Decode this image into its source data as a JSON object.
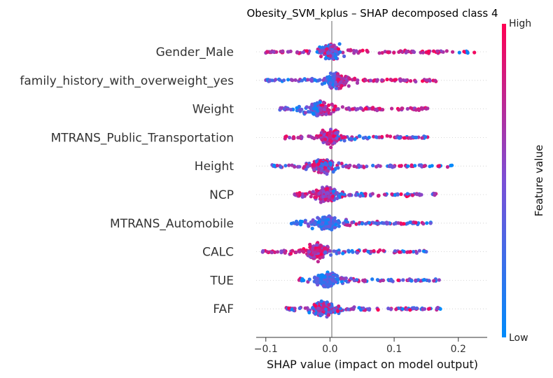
{
  "chart_data": {
    "type": "scatter",
    "subtype": "shap-beeswarm",
    "title": "Obesity_SVM_kplus – SHAP decomposed class 4",
    "xlabel": "SHAP value (impact on model output)",
    "xticks": [
      -0.1,
      0.0,
      0.1,
      0.2
    ],
    "xtick_labels": [
      "−0.1",
      "0.0",
      "0.1",
      "0.2"
    ],
    "xlim": [
      -0.115,
      0.245
    ],
    "colorbar": {
      "label": "Feature value",
      "high_label": "High",
      "low_label": "Low",
      "low_color": "#008bfb",
      "mid_color": "#7b4fd6",
      "high_color": "#ff0052"
    },
    "series": [
      {
        "name": "Gender_Male",
        "min": -0.1,
        "max": 0.225,
        "mode": 0.0,
        "bias": "high-both-sides"
      },
      {
        "name": "family_history_with_overweight_yes",
        "min": -0.1,
        "max": 0.165,
        "mode": 0.01,
        "bias": "high-right"
      },
      {
        "name": "Weight",
        "min": -0.078,
        "max": 0.152,
        "mode": -0.015,
        "bias": "high-right"
      },
      {
        "name": "MTRANS_Public_Transportation",
        "min": -0.07,
        "max": 0.152,
        "mode": 0.0,
        "bias": "high-left"
      },
      {
        "name": "Height",
        "min": -0.09,
        "max": 0.19,
        "mode": -0.01,
        "bias": "mixed"
      },
      {
        "name": "NCP",
        "min": -0.055,
        "max": 0.165,
        "mode": -0.005,
        "bias": "high-left"
      },
      {
        "name": "MTRANS_Automobile",
        "min": -0.06,
        "max": 0.157,
        "mode": -0.005,
        "bias": "low-left"
      },
      {
        "name": "CALC",
        "min": -0.105,
        "max": 0.15,
        "mode": -0.02,
        "bias": "high-left"
      },
      {
        "name": "TUE",
        "min": -0.048,
        "max": 0.17,
        "mode": -0.005,
        "bias": "low-center"
      },
      {
        "name": "FAF",
        "min": -0.068,
        "max": 0.172,
        "mode": -0.01,
        "bias": "mixed"
      }
    ]
  }
}
